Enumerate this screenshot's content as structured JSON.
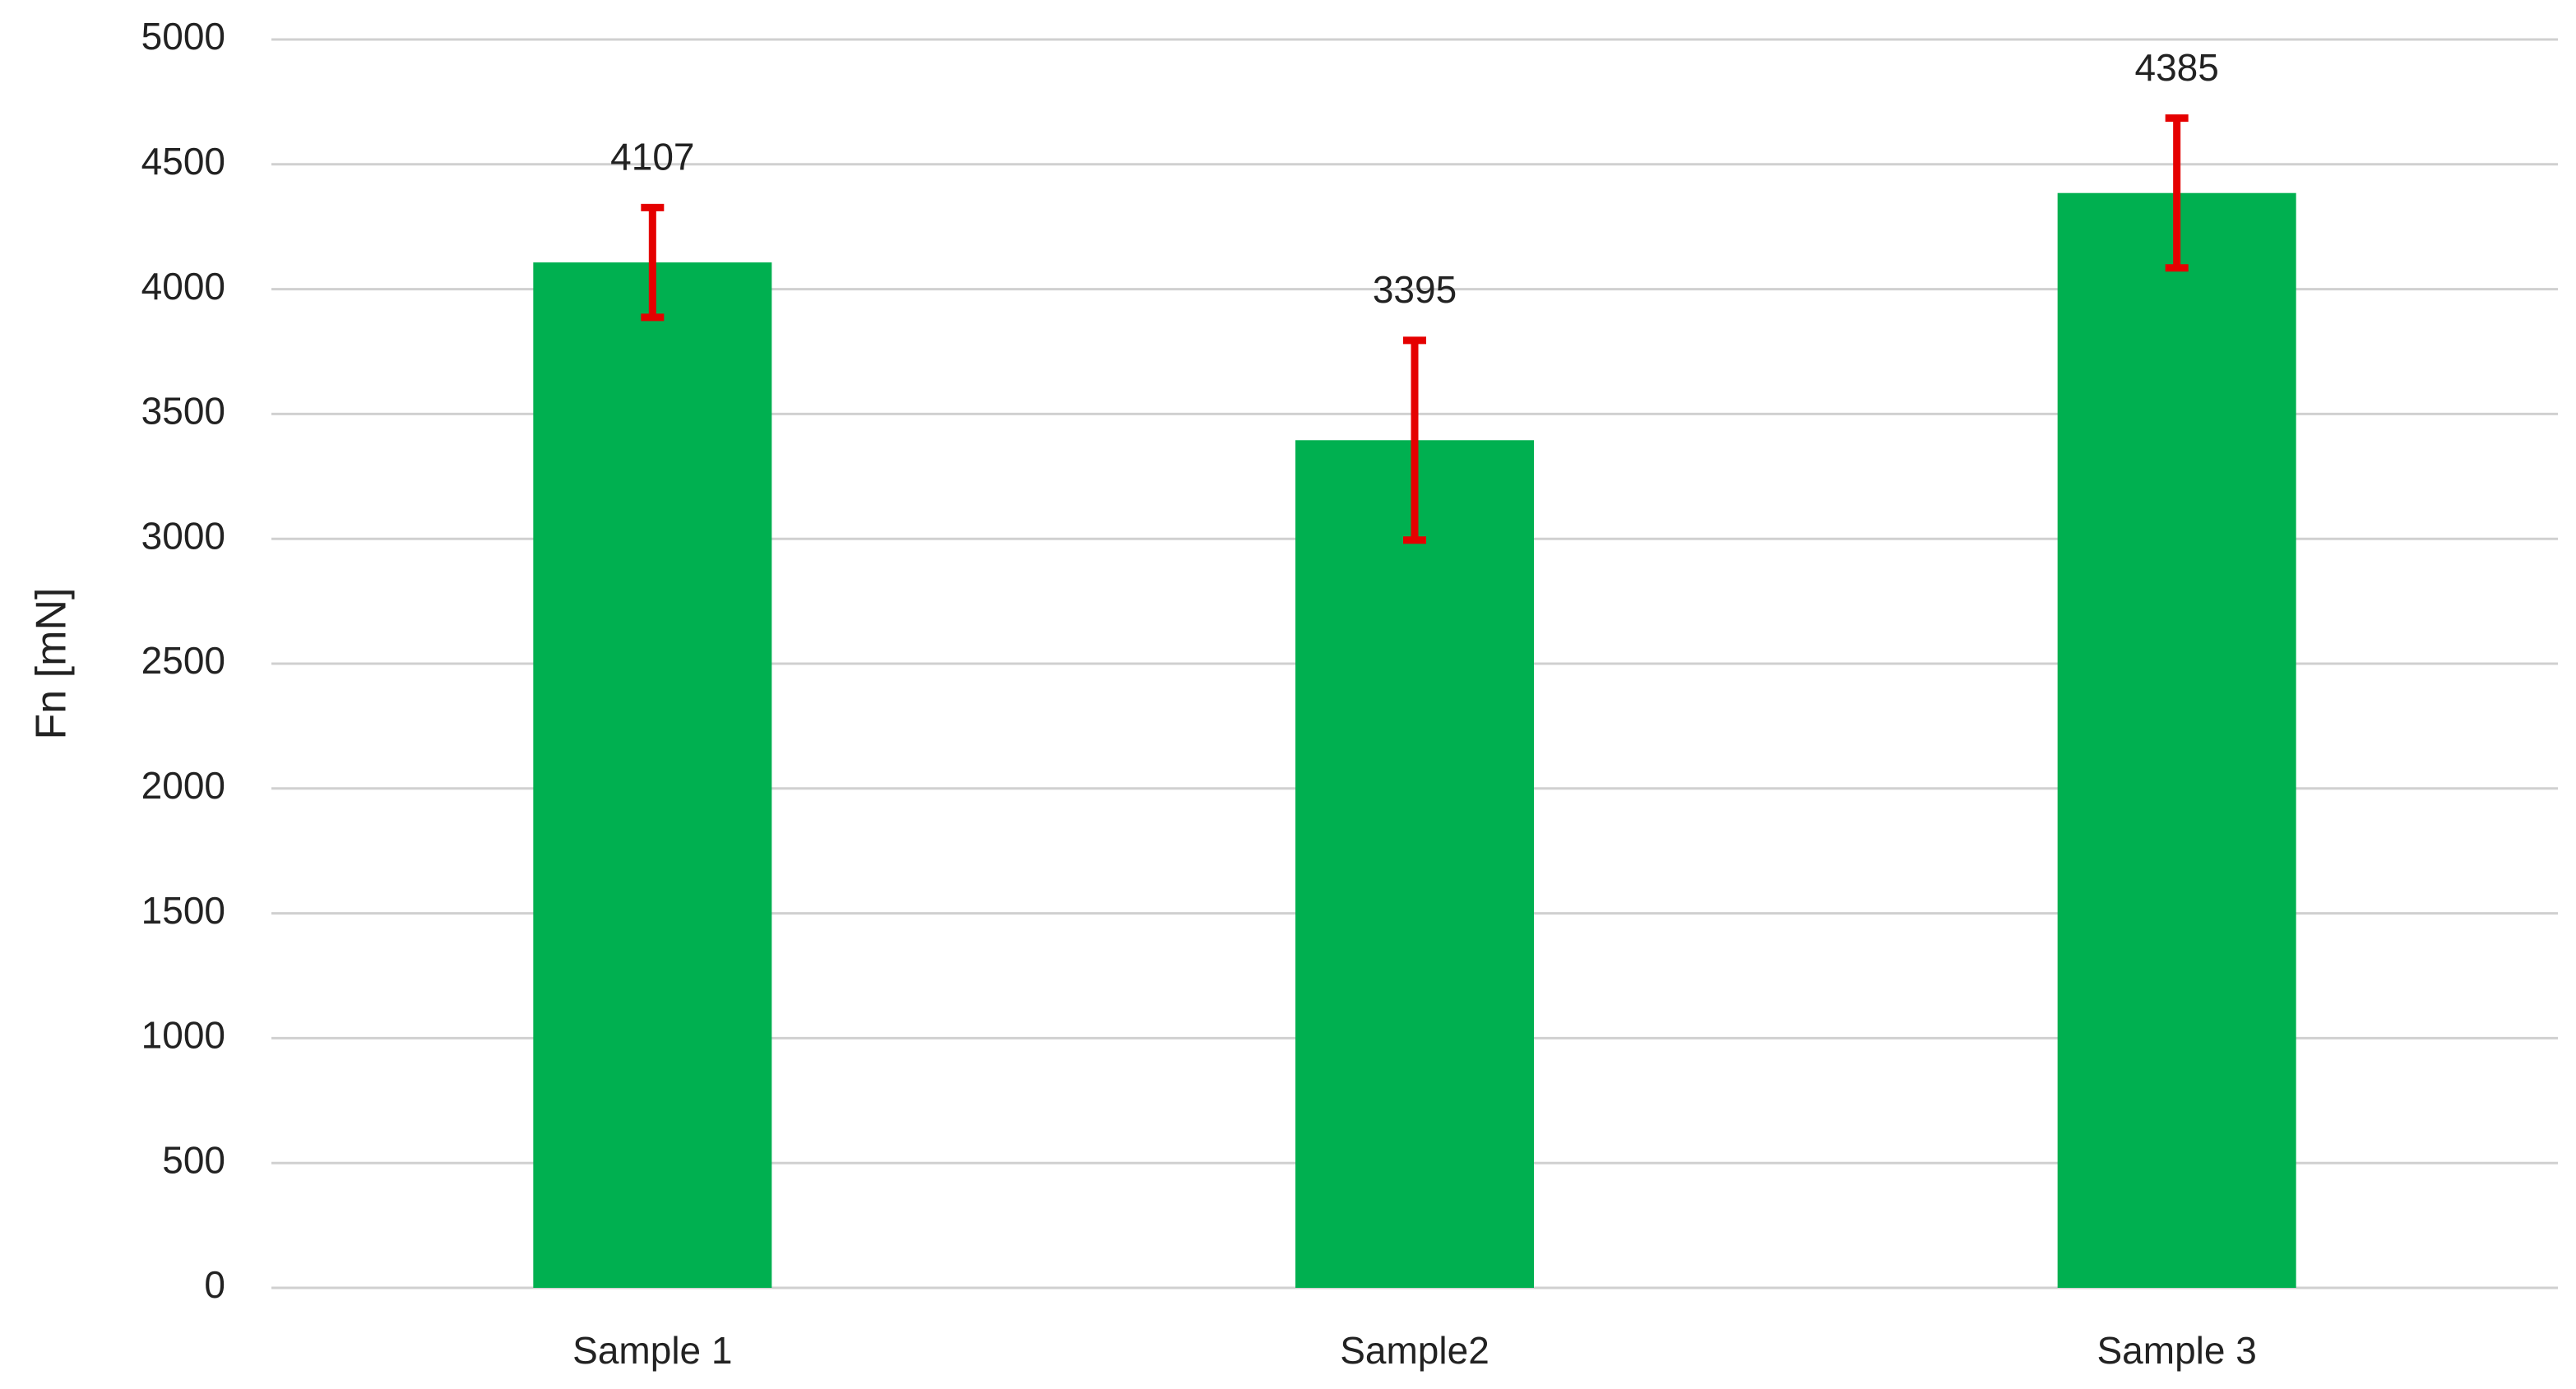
{
  "chart_data": {
    "type": "bar",
    "y_label": "Fn [mN]",
    "categories": [
      "Sample 1",
      "Sample2",
      "Sample 3"
    ],
    "values": [
      4107,
      3395,
      4385
    ],
    "errors": [
      220,
      400,
      300
    ],
    "color": "#00b050",
    "error_color": "#e50000",
    "ylim": [
      0,
      5000
    ],
    "yticks": [
      0,
      500,
      1000,
      1500,
      2000,
      2500,
      3000,
      3500,
      4000,
      4500,
      5000
    ],
    "grid": true
  }
}
